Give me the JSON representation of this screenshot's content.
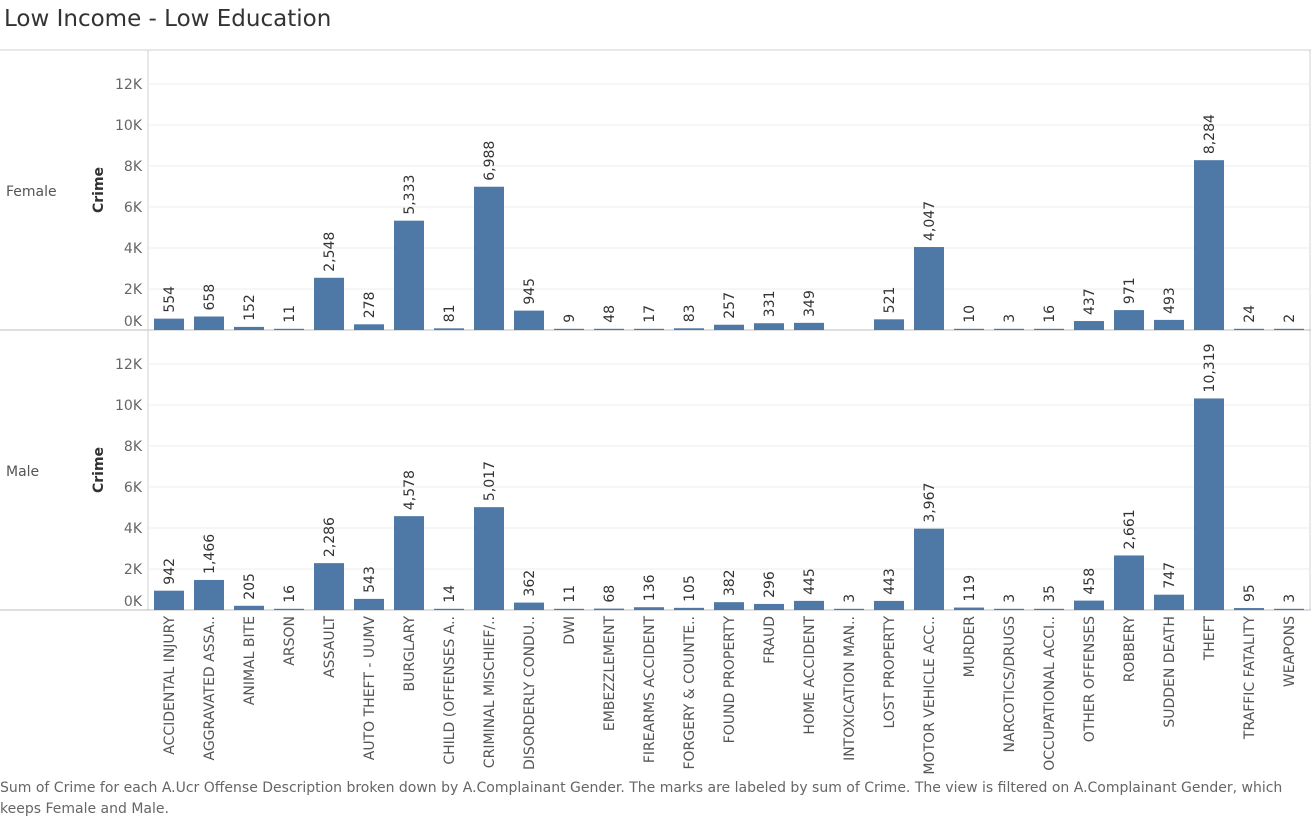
{
  "title": "Low Income - Low Education",
  "caption": "Sum of Crime for each A.Ucr Offense Description broken down by A.Complainant Gender.  The marks are labeled by sum of Crime. The view is filtered on A.Complainant Gender, which keeps Female and Male.",
  "chart_data": {
    "type": "bar",
    "ylabel": "Crime",
    "ylim": [
      0,
      13000
    ],
    "y_ticks": [
      "0K",
      "2K",
      "4K",
      "6K",
      "8K",
      "10K",
      "12K"
    ],
    "y_tick_values": [
      0,
      2000,
      4000,
      6000,
      8000,
      10000,
      12000
    ],
    "bar_color": "#4e79a7",
    "grid": true,
    "categories": [
      "ACCIDENTAL INJURY",
      "AGGRAVATED ASSA..",
      "ANIMAL BITE",
      "ARSON",
      "ASSAULT",
      "AUTO THEFT - UUMV",
      "BURGLARY",
      "CHILD (OFFENSES A..",
      "CRIMINAL MISCHIEF/..",
      "DISORDERLY CONDU..",
      "DWI",
      "EMBEZZLEMENT",
      "FIREARMS ACCIDENT",
      "FORGERY & COUNTE..",
      "FOUND PROPERTY",
      "FRAUD",
      "HOME ACCIDENT",
      "INTOXICATION MAN..",
      "LOST PROPERTY",
      "MOTOR VEHICLE ACC..",
      "MURDER",
      "NARCOTICS/DRUGS",
      "OCCUPATIONAL ACCI..",
      "OTHER OFFENSES",
      "ROBBERY",
      "SUDDEN DEATH",
      "THEFT",
      "TRAFFIC FATALITY",
      "WEAPONS"
    ],
    "series": [
      {
        "name": "Female",
        "values": [
          554,
          658,
          152,
          11,
          2548,
          278,
          5333,
          81,
          6988,
          945,
          9,
          48,
          17,
          83,
          257,
          331,
          349,
          null,
          521,
          4047,
          10,
          3,
          16,
          437,
          971,
          493,
          8284,
          24,
          2
        ],
        "labels": [
          "554",
          "658",
          "152",
          "11",
          "2,548",
          "278",
          "5,333",
          "81",
          "6,988",
          "945",
          "9",
          "48",
          "17",
          "83",
          "257",
          "331",
          "349",
          "",
          "521",
          "4,047",
          "10",
          "3",
          "16",
          "437",
          "971",
          "493",
          "8,284",
          "24",
          "2"
        ]
      },
      {
        "name": "Male",
        "values": [
          942,
          1466,
          205,
          16,
          2286,
          543,
          4578,
          14,
          5017,
          362,
          11,
          68,
          136,
          105,
          382,
          296,
          445,
          3,
          443,
          3967,
          119,
          3,
          35,
          458,
          2661,
          747,
          10319,
          95,
          3
        ],
        "labels": [
          "942",
          "1,466",
          "205",
          "16",
          "2,286",
          "543",
          "4,578",
          "14",
          "5,017",
          "362",
          "11",
          "68",
          "136",
          "105",
          "382",
          "296",
          "445",
          "3",
          "443",
          "3,967",
          "119",
          "3",
          "35",
          "458",
          "2,661",
          "747",
          "10,319",
          "95",
          "3"
        ]
      }
    ]
  }
}
